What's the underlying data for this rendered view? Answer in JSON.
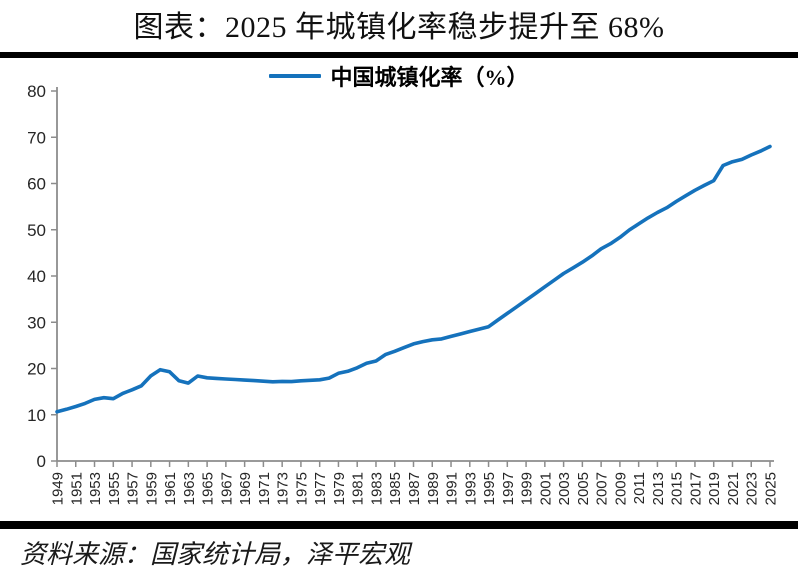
{
  "page": {
    "background": "#ffffff"
  },
  "header": {
    "title": "图表：2025 年城镇化率稳步提升至 68%"
  },
  "legend": {
    "label": "中国城镇化率（%）",
    "line_color": "#1572BC"
  },
  "footer": {
    "source": "资料来源：国家统计局，泽平宏观"
  },
  "chart_data": {
    "type": "line",
    "title": "图表：2025 年城镇化率稳步提升至 68%",
    "legend_entries": [
      "中国城镇化率（%）"
    ],
    "legend_position": "top-center",
    "grid": false,
    "xlabel": "",
    "ylabel": "",
    "ylim": [
      0,
      80
    ],
    "ytick_step": 10,
    "xtick_every": 2,
    "axis_color": "#8C8C8C",
    "tick_label_color": "#262626",
    "x": [
      1949,
      1950,
      1951,
      1952,
      1953,
      1954,
      1955,
      1956,
      1957,
      1958,
      1959,
      1960,
      1961,
      1962,
      1963,
      1964,
      1965,
      1966,
      1967,
      1968,
      1969,
      1970,
      1971,
      1972,
      1973,
      1974,
      1975,
      1976,
      1977,
      1978,
      1979,
      1980,
      1981,
      1982,
      1983,
      1984,
      1985,
      1986,
      1987,
      1988,
      1989,
      1990,
      1991,
      1992,
      1993,
      1994,
      1995,
      1996,
      1997,
      1998,
      1999,
      2000,
      2001,
      2002,
      2003,
      2004,
      2005,
      2006,
      2007,
      2008,
      2009,
      2010,
      2011,
      2012,
      2013,
      2014,
      2015,
      2016,
      2017,
      2018,
      2019,
      2020,
      2021,
      2022,
      2023,
      2024,
      2025
    ],
    "series": [
      {
        "name": "中国城镇化率（%）",
        "color": "#1572BC",
        "values": [
          10.64,
          11.18,
          11.78,
          12.46,
          13.31,
          13.69,
          13.48,
          14.62,
          15.39,
          16.25,
          18.41,
          19.75,
          19.29,
          17.33,
          16.84,
          18.37,
          17.98,
          17.86,
          17.74,
          17.62,
          17.5,
          17.38,
          17.26,
          17.13,
          17.2,
          17.16,
          17.34,
          17.44,
          17.55,
          17.92,
          18.96,
          19.39,
          20.16,
          21.13,
          21.62,
          23.01,
          23.71,
          24.52,
          25.32,
          25.81,
          26.21,
          26.41,
          26.94,
          27.46,
          27.99,
          28.51,
          29.04,
          30.48,
          31.91,
          33.35,
          34.78,
          36.22,
          37.66,
          39.09,
          40.53,
          41.76,
          42.99,
          44.34,
          45.89,
          46.99,
          48.34,
          49.95,
          51.27,
          52.57,
          53.73,
          54.77,
          56.1,
          57.35,
          58.52,
          59.58,
          60.6,
          63.89,
          64.72,
          65.22,
          66.16,
          67.0,
          68.0
        ]
      }
    ]
  }
}
